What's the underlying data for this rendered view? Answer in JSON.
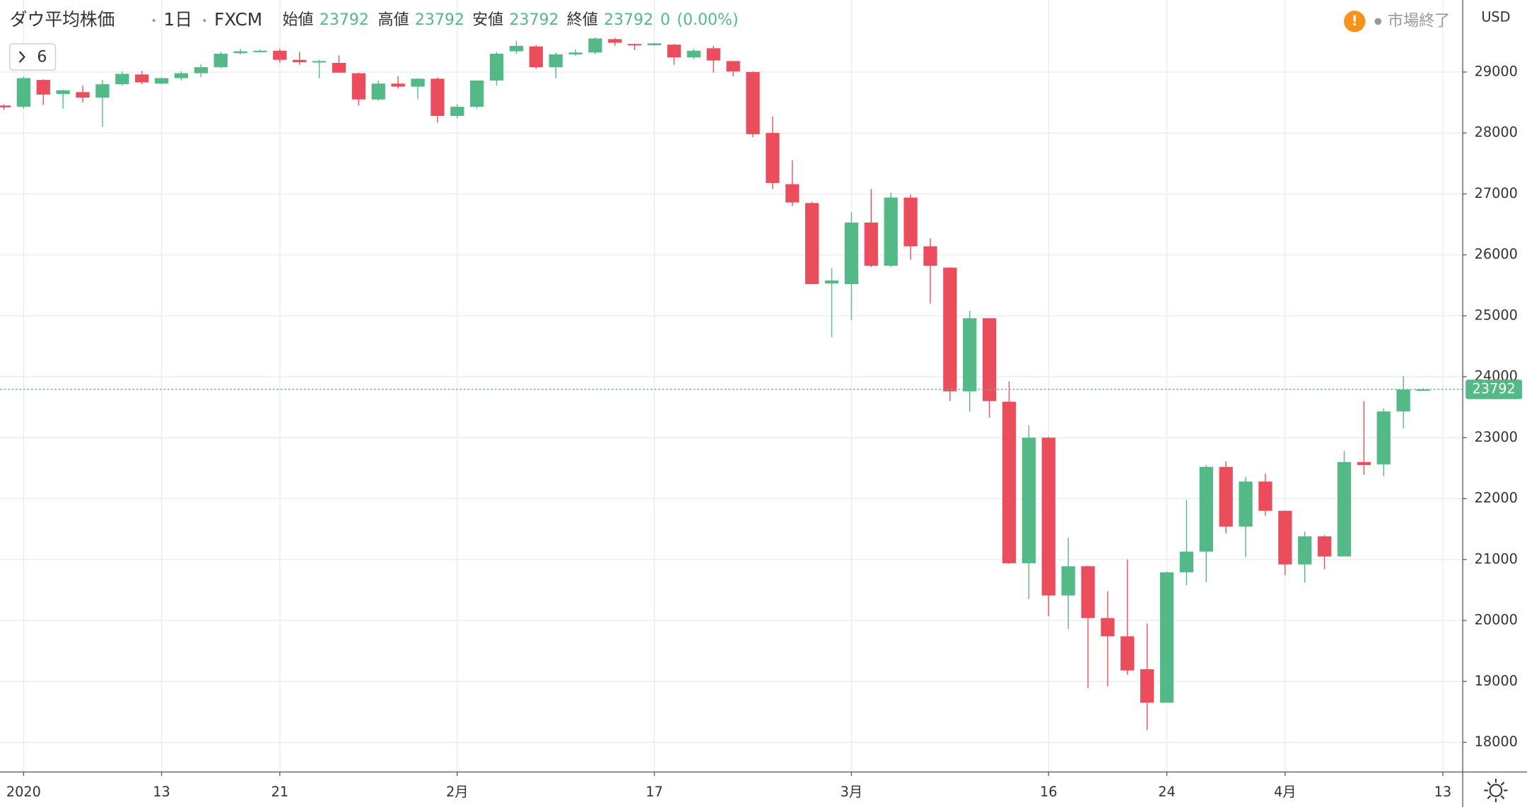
{
  "header": {
    "symbol": "ダウ平均株価",
    "interval": "1日",
    "source": "FXCM",
    "open_label": "始値",
    "open": 23792,
    "high_label": "高値",
    "high": 23792,
    "low_label": "安値",
    "low": 23792,
    "close_label": "終値",
    "close": 23792,
    "change": 0,
    "change_pct": "(0.00%)",
    "indicators": 6,
    "market_status": "市場終了",
    "currency": "USD"
  },
  "chart_data": {
    "type": "candlestick",
    "categories": [
      null,
      "2020",
      null,
      null,
      null,
      null,
      null,
      null,
      "13",
      null,
      null,
      null,
      null,
      null,
      "21",
      null,
      null,
      null,
      null,
      null,
      null,
      null,
      null,
      "2月",
      null,
      null,
      null,
      null,
      null,
      null,
      null,
      null,
      null,
      "17",
      null,
      null,
      null,
      null,
      null,
      null,
      null,
      null,
      null,
      "3月",
      null,
      null,
      null,
      null,
      null,
      null,
      null,
      null,
      null,
      "16",
      null,
      null,
      null,
      null,
      null,
      "24",
      null,
      null,
      null,
      null,
      null,
      "4月",
      null,
      null,
      null,
      null,
      null,
      null,
      null,
      "13"
    ],
    "open": [
      28450,
      28430,
      28870,
      28640,
      28670,
      28580,
      28800,
      28960,
      28810,
      28900,
      28980,
      29080,
      29310,
      29340,
      29350,
      29200,
      29160,
      29150,
      28980,
      28550,
      28810,
      28760,
      28890,
      28280,
      28430,
      28860,
      29340,
      29420,
      29080,
      29290,
      29320,
      29540,
      29460,
      29440,
      29450,
      29240,
      29390,
      29180,
      29000,
      28000,
      27160,
      26850,
      25530,
      25520,
      26530,
      25820,
      26940,
      26140,
      25790,
      23760,
      24960,
      23590,
      20940,
      23000,
      20410,
      20890,
      20040,
      19740,
      19200,
      18650,
      20790,
      21130,
      22520,
      21540,
      22280,
      21800,
      20920,
      21380,
      21050,
      22600,
      22560,
      23430,
      23792,
      null
    ],
    "high": [
      28470,
      28920,
      28880,
      28710,
      28776,
      28870,
      29010,
      29020,
      28910,
      29010,
      29130,
      29330,
      29380,
      29370,
      29380,
      29330,
      29200,
      29270,
      28990,
      28860,
      28930,
      28900,
      28910,
      28470,
      28860,
      29330,
      29510,
      29440,
      29320,
      29370,
      29570,
      29560,
      29470,
      29480,
      29460,
      29380,
      29430,
      29180,
      29010,
      28270,
      27550,
      26870,
      25780,
      26700,
      27080,
      27020,
      26990,
      26270,
      25800,
      25080,
      24960,
      23920,
      23200,
      23010,
      21360,
      20900,
      20480,
      21000,
      19950,
      20800,
      21980,
      22550,
      22610,
      22360,
      22410,
      21800,
      21460,
      21400,
      22780,
      23600,
      23480,
      24010,
      23810,
      null
    ],
    "low": [
      28380,
      28400,
      28460,
      28400,
      28500,
      28100,
      28780,
      28800,
      28800,
      28860,
      28920,
      29060,
      29290,
      29320,
      29150,
      29120,
      28900,
      28990,
      28450,
      28530,
      28730,
      28560,
      28170,
      28240,
      28400,
      28780,
      29300,
      29050,
      28900,
      29270,
      29290,
      29430,
      29360,
      29430,
      29120,
      29210,
      28990,
      28930,
      27930,
      27080,
      26800,
      25520,
      24650,
      24930,
      25800,
      25800,
      25920,
      25200,
      23600,
      23430,
      23330,
      20930,
      20350,
      20070,
      19860,
      18890,
      18920,
      19110,
      18200,
      18650,
      20580,
      20630,
      21430,
      21040,
      21720,
      20740,
      20620,
      20840,
      21050,
      22390,
      22370,
      23150,
      23780,
      null
    ],
    "close": [
      28420,
      28900,
      28630,
      28700,
      28580,
      28800,
      28970,
      28830,
      28900,
      28980,
      29080,
      29300,
      29340,
      29350,
      29200,
      29160,
      29180,
      28990,
      28550,
      28810,
      28760,
      28890,
      28280,
      28430,
      28860,
      29300,
      29430,
      29080,
      29290,
      29320,
      29550,
      29480,
      29440,
      29470,
      29240,
      29350,
      29190,
      29010,
      27980,
      27180,
      26860,
      25520,
      25580,
      26530,
      25820,
      26940,
      26140,
      25820,
      23760,
      24960,
      23600,
      20940,
      23000,
      20410,
      20890,
      20040,
      19740,
      19180,
      18650,
      20790,
      21130,
      22520,
      21540,
      22280,
      21800,
      20920,
      21380,
      21050,
      22600,
      22550,
      23430,
      23790,
      23792,
      null
    ],
    "up_color": "#53b987",
    "down_color": "#eb4d5c",
    "ylim": [
      17514,
      30182
    ],
    "yticks": [
      18000,
      19000,
      20000,
      21000,
      22000,
      23000,
      24000,
      25000,
      26000,
      27000,
      28000,
      29000
    ],
    "grid": true,
    "last_price": 23792
  }
}
